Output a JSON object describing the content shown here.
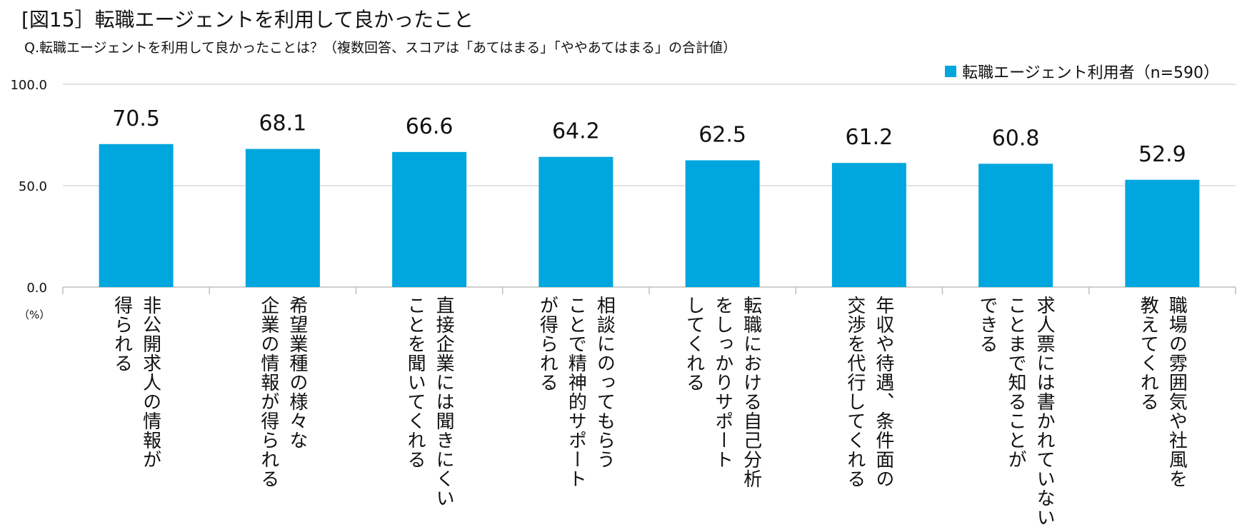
{
  "title": "[図15］転職エージェントを利用して良かったこと",
  "subtitle": "Q.転職エージェントを利用して良かったことは？（複数回答、スコアは「あてはまる」「ややあてはまる」の合計値）",
  "unit_label": "（%）",
  "colors": {
    "bar": "#00A6DE",
    "grid": "#D9D9D9",
    "axis": "#BFBFBF"
  },
  "chart_data": {
    "type": "bar",
    "categories": [
      "非公開求人の情報が\n得られる",
      "希望業種の様々な\n企業の情報が得られる",
      "直接企業には聞きにくい\nことを聞いてくれる",
      "相談にのってもらう\nことで精神的サポート\nが得られる",
      "転職における自己分析\nをしっかりサポート\nしてくれる",
      "年収や待遇、条件面の\n交渉を代行してくれる",
      "求人票には書かれていない\nことまで知ることが\nできる",
      "職場の雰囲気や社風を\n教えてくれる"
    ],
    "series": [
      {
        "name": "転職エージェント利用者（n=590）",
        "values": [
          70.5,
          68.1,
          66.6,
          64.2,
          62.5,
          61.2,
          60.8,
          52.9
        ]
      }
    ],
    "value_labels": [
      "70.5",
      "68.1",
      "66.6",
      "64.2",
      "62.5",
      "61.2",
      "60.8",
      "52.9"
    ],
    "ylim": [
      0,
      100
    ],
    "yticks": [
      0,
      50,
      100
    ],
    "ytick_labels": [
      "0.0",
      "50.0",
      "100.0"
    ],
    "grid": true,
    "legend_position": "top-right"
  }
}
